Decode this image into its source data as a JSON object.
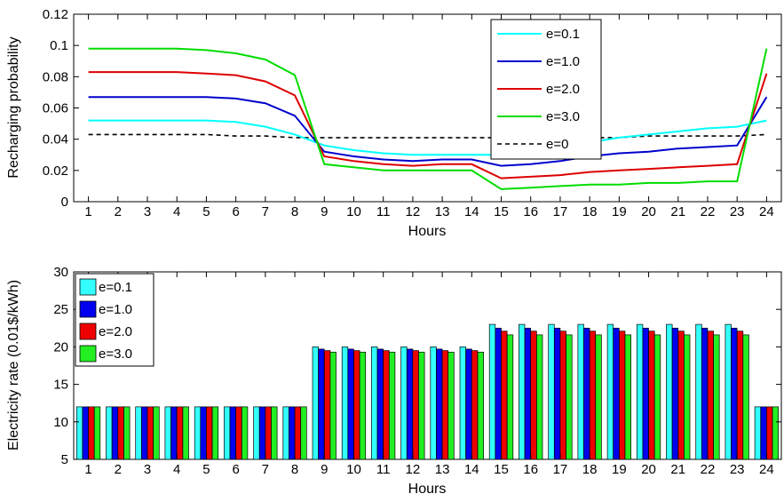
{
  "chart_data": [
    {
      "type": "line",
      "xlabel": "Hours",
      "ylabel": "Recharging probability",
      "xlim": [
        0.5,
        24.5
      ],
      "ylim": [
        0,
        0.12
      ],
      "x": [
        1,
        2,
        3,
        4,
        5,
        6,
        7,
        8,
        9,
        10,
        11,
        12,
        13,
        14,
        15,
        16,
        17,
        18,
        19,
        20,
        21,
        22,
        23,
        24
      ],
      "xticks": [
        1,
        2,
        3,
        4,
        5,
        6,
        7,
        8,
        9,
        10,
        11,
        12,
        13,
        14,
        15,
        16,
        17,
        18,
        19,
        20,
        21,
        22,
        23,
        24
      ],
      "yticks": [
        0,
        0.02,
        0.04,
        0.06,
        0.08,
        0.1,
        0.12
      ],
      "ytick_labels": [
        "0",
        "0.02",
        "0.04",
        "0.06",
        "0.08",
        "0.1",
        "0.12"
      ],
      "grid": false,
      "legend_position": "top-center",
      "series": [
        {
          "name": "e=0.1",
          "color": "#00ffff",
          "dash": "solid",
          "values": [
            0.052,
            0.052,
            0.052,
            0.052,
            0.052,
            0.051,
            0.048,
            0.043,
            0.036,
            0.033,
            0.031,
            0.03,
            0.03,
            0.03,
            0.03,
            0.032,
            0.035,
            0.038,
            0.041,
            0.043,
            0.045,
            0.047,
            0.048,
            0.052
          ]
        },
        {
          "name": "e=1.0",
          "color": "#0000cc",
          "dash": "solid",
          "values": [
            0.067,
            0.067,
            0.067,
            0.067,
            0.067,
            0.066,
            0.063,
            0.055,
            0.032,
            0.029,
            0.027,
            0.026,
            0.027,
            0.027,
            0.023,
            0.024,
            0.026,
            0.029,
            0.031,
            0.032,
            0.034,
            0.035,
            0.036,
            0.067
          ]
        },
        {
          "name": "e=2.0",
          "color": "#dd0000",
          "dash": "solid",
          "values": [
            0.083,
            0.083,
            0.083,
            0.083,
            0.082,
            0.081,
            0.077,
            0.068,
            0.029,
            0.026,
            0.024,
            0.023,
            0.024,
            0.024,
            0.015,
            0.016,
            0.017,
            0.019,
            0.02,
            0.021,
            0.022,
            0.023,
            0.024,
            0.082
          ]
        },
        {
          "name": "e=3.0",
          "color": "#00dd00",
          "dash": "solid",
          "values": [
            0.098,
            0.098,
            0.098,
            0.098,
            0.097,
            0.095,
            0.091,
            0.081,
            0.024,
            0.022,
            0.02,
            0.02,
            0.02,
            0.02,
            0.008,
            0.009,
            0.01,
            0.011,
            0.011,
            0.012,
            0.012,
            0.013,
            0.013,
            0.098
          ]
        },
        {
          "name": "e=0",
          "color": "#000000",
          "dash": "dashed",
          "values": [
            0.043,
            0.043,
            0.043,
            0.043,
            0.043,
            0.042,
            0.042,
            0.041,
            0.041,
            0.041,
            0.041,
            0.041,
            0.041,
            0.041,
            0.041,
            0.041,
            0.041,
            0.041,
            0.041,
            0.042,
            0.042,
            0.042,
            0.042,
            0.043
          ]
        }
      ]
    },
    {
      "type": "bar",
      "xlabel": "Hours",
      "ylabel": "Electricity rate (0.01$/kWh)",
      "xlim": [
        0.5,
        24.5
      ],
      "ylim": [
        5,
        30
      ],
      "categories": [
        "1",
        "2",
        "3",
        "4",
        "5",
        "6",
        "7",
        "8",
        "9",
        "10",
        "11",
        "12",
        "13",
        "14",
        "15",
        "16",
        "17",
        "18",
        "19",
        "20",
        "21",
        "22",
        "23",
        "24"
      ],
      "yticks": [
        5,
        10,
        15,
        20,
        25,
        30
      ],
      "ytick_labels": [
        "5",
        "10",
        "15",
        "20",
        "25",
        "30"
      ],
      "grid": false,
      "legend_position": "top-left",
      "series": [
        {
          "name": "e=0.1",
          "color": "#33ffff",
          "values": [
            12,
            12,
            12,
            12,
            12,
            12,
            12,
            12,
            20,
            20,
            20,
            20,
            20,
            20,
            23,
            23,
            23,
            23,
            23,
            23,
            23,
            23,
            23,
            12
          ]
        },
        {
          "name": "e=1.0",
          "color": "#0000ee",
          "values": [
            12,
            12,
            12,
            12,
            12,
            12,
            12,
            12,
            19.7,
            19.7,
            19.7,
            19.7,
            19.7,
            19.7,
            22.5,
            22.5,
            22.5,
            22.5,
            22.5,
            22.5,
            22.5,
            22.5,
            22.5,
            12
          ]
        },
        {
          "name": "e=2.0",
          "color": "#ee0000",
          "values": [
            12,
            12,
            12,
            12,
            12,
            12,
            12,
            12,
            19.5,
            19.5,
            19.5,
            19.5,
            19.5,
            19.5,
            22.1,
            22.1,
            22.1,
            22.1,
            22.1,
            22.1,
            22.1,
            22.1,
            22.1,
            12
          ]
        },
        {
          "name": "e=3.0",
          "color": "#22ee22",
          "values": [
            12,
            12,
            12,
            12,
            12,
            12,
            12,
            12,
            19.3,
            19.3,
            19.3,
            19.3,
            19.3,
            19.3,
            21.6,
            21.6,
            21.6,
            21.6,
            21.6,
            21.6,
            21.6,
            21.6,
            21.6,
            12
          ]
        }
      ]
    }
  ]
}
